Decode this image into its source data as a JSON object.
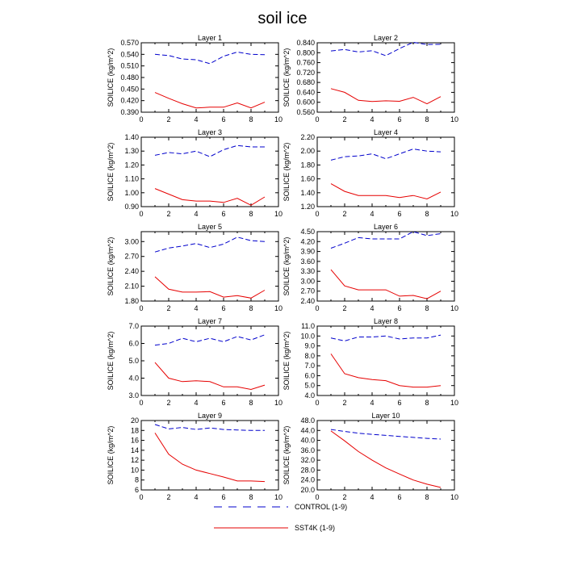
{
  "title": "soil ice",
  "legend": {
    "control_label": "CONTROL (1-9)",
    "sst4k_label": "SST4K (1-9)"
  },
  "colors": {
    "control": "#0000cc",
    "sst4k": "#e60000",
    "axis": "#000000"
  },
  "chart_data": [
    {
      "type": "line",
      "title": "Layer 1",
      "xlabel": "",
      "ylabel": "SOILICE  (kg/m^2)",
      "x": [
        1,
        2,
        3,
        4,
        5,
        6,
        7,
        8,
        9
      ],
      "xlim": [
        0,
        10
      ],
      "xticks": [
        0,
        2,
        4,
        6,
        8,
        10
      ],
      "ylim": [
        0.39,
        0.57
      ],
      "yticks": [
        "0.390",
        "0.420",
        "0.450",
        "0.480",
        "0.510",
        "0.540",
        "0.570"
      ],
      "series": [
        {
          "name": "CONTROL (1-9)",
          "style": "dashed",
          "values": [
            0.54,
            0.537,
            0.528,
            0.526,
            0.516,
            0.535,
            0.546,
            0.54,
            0.539
          ]
        },
        {
          "name": "SST4K (1-9)",
          "style": "solid",
          "values": [
            0.441,
            0.426,
            0.412,
            0.401,
            0.403,
            0.403,
            0.414,
            0.401,
            0.416
          ]
        }
      ]
    },
    {
      "type": "line",
      "title": "Layer 2",
      "xlabel": "",
      "ylabel": "SOILICE  (kg/m^2)",
      "x": [
        1,
        2,
        3,
        4,
        5,
        6,
        7,
        8,
        9
      ],
      "xlim": [
        0,
        10
      ],
      "xticks": [
        0,
        2,
        4,
        6,
        8,
        10
      ],
      "ylim": [
        0.56,
        0.84
      ],
      "yticks": [
        "0.560",
        "0.600",
        "0.640",
        "0.680",
        "0.720",
        "0.760",
        "0.800",
        "0.840"
      ],
      "series": [
        {
          "name": "CONTROL (1-9)",
          "style": "dashed",
          "values": [
            0.807,
            0.813,
            0.803,
            0.808,
            0.788,
            0.817,
            0.842,
            0.833,
            0.834
          ]
        },
        {
          "name": "SST4K (1-9)",
          "style": "solid",
          "values": [
            0.655,
            0.64,
            0.608,
            0.603,
            0.606,
            0.604,
            0.62,
            0.594,
            0.623
          ]
        }
      ]
    },
    {
      "type": "line",
      "title": "Layer 3",
      "xlabel": "",
      "ylabel": "SOILICE  (kg/m^2)",
      "x": [
        1,
        2,
        3,
        4,
        5,
        6,
        7,
        8,
        9
      ],
      "xlim": [
        0,
        10
      ],
      "xticks": [
        0,
        2,
        4,
        6,
        8,
        10
      ],
      "ylim": [
        0.9,
        1.4
      ],
      "yticks": [
        "0.90",
        "1.00",
        "1.10",
        "1.20",
        "1.30",
        "1.40"
      ],
      "series": [
        {
          "name": "CONTROL (1-9)",
          "style": "dashed",
          "values": [
            1.27,
            1.29,
            1.28,
            1.3,
            1.26,
            1.31,
            1.34,
            1.33,
            1.33
          ]
        },
        {
          "name": "SST4K (1-9)",
          "style": "solid",
          "values": [
            1.03,
            0.99,
            0.95,
            0.94,
            0.94,
            0.93,
            0.96,
            0.91,
            0.97
          ]
        }
      ]
    },
    {
      "type": "line",
      "title": "Layer 4",
      "xlabel": "",
      "ylabel": "SOILICE  (kg/m^2)",
      "x": [
        1,
        2,
        3,
        4,
        5,
        6,
        7,
        8,
        9
      ],
      "xlim": [
        0,
        10
      ],
      "xticks": [
        0,
        2,
        4,
        6,
        8,
        10
      ],
      "ylim": [
        1.2,
        2.2
      ],
      "yticks": [
        "1.20",
        "1.40",
        "1.60",
        "1.80",
        "2.00",
        "2.20"
      ],
      "series": [
        {
          "name": "CONTROL (1-9)",
          "style": "dashed",
          "values": [
            1.87,
            1.92,
            1.93,
            1.96,
            1.89,
            1.96,
            2.03,
            2.0,
            1.99
          ]
        },
        {
          "name": "SST4K (1-9)",
          "style": "solid",
          "values": [
            1.53,
            1.42,
            1.36,
            1.36,
            1.36,
            1.33,
            1.36,
            1.31,
            1.41
          ]
        }
      ]
    },
    {
      "type": "line",
      "title": "Layer 5",
      "xlabel": "",
      "ylabel": "SOILICE  (kg/m^2)",
      "x": [
        1,
        2,
        3,
        4,
        5,
        6,
        7,
        8,
        9
      ],
      "xlim": [
        0,
        10
      ],
      "xticks": [
        0,
        2,
        4,
        6,
        8,
        10
      ],
      "ylim": [
        1.8,
        3.2
      ],
      "yticks": [
        "1.80",
        "2.10",
        "2.40",
        "2.70",
        "3.00"
      ],
      "series": [
        {
          "name": "CONTROL (1-9)",
          "style": "dashed",
          "values": [
            2.79,
            2.87,
            2.91,
            2.96,
            2.88,
            2.95,
            3.09,
            3.02,
            3.0
          ]
        },
        {
          "name": "SST4K (1-9)",
          "style": "solid",
          "values": [
            2.29,
            2.04,
            1.98,
            1.98,
            1.99,
            1.88,
            1.91,
            1.86,
            2.02
          ]
        }
      ]
    },
    {
      "type": "line",
      "title": "Layer 6",
      "xlabel": "",
      "ylabel": "SOILICE  (kg/m^2)",
      "x": [
        1,
        2,
        3,
        4,
        5,
        6,
        7,
        8,
        9
      ],
      "xlim": [
        0,
        10
      ],
      "xticks": [
        0,
        2,
        4,
        6,
        8,
        10
      ],
      "ylim": [
        2.4,
        4.5
      ],
      "yticks": [
        "2.40",
        "2.70",
        "3.00",
        "3.30",
        "3.60",
        "3.90",
        "4.20",
        "4.50"
      ],
      "series": [
        {
          "name": "CONTROL (1-9)",
          "style": "dashed",
          "values": [
            4.0,
            4.15,
            4.32,
            4.28,
            4.28,
            4.28,
            4.5,
            4.38,
            4.44
          ]
        },
        {
          "name": "SST4K (1-9)",
          "style": "solid",
          "values": [
            3.35,
            2.86,
            2.74,
            2.74,
            2.74,
            2.55,
            2.57,
            2.47,
            2.7
          ]
        }
      ]
    },
    {
      "type": "line",
      "title": "Layer 7",
      "xlabel": "",
      "ylabel": "SOILICE  (kg/m^2)",
      "x": [
        1,
        2,
        3,
        4,
        5,
        6,
        7,
        8,
        9
      ],
      "xlim": [
        0,
        10
      ],
      "xticks": [
        0,
        2,
        4,
        6,
        8,
        10
      ],
      "ylim": [
        3.0,
        7.0
      ],
      "yticks": [
        "3.0",
        "4.0",
        "5.0",
        "6.0",
        "7.0"
      ],
      "series": [
        {
          "name": "CONTROL (1-9)",
          "style": "dashed",
          "values": [
            5.9,
            6.0,
            6.3,
            6.1,
            6.3,
            6.1,
            6.4,
            6.2,
            6.5
          ]
        },
        {
          "name": "SST4K (1-9)",
          "style": "solid",
          "values": [
            4.9,
            4.0,
            3.8,
            3.85,
            3.8,
            3.5,
            3.5,
            3.35,
            3.6
          ]
        }
      ]
    },
    {
      "type": "line",
      "title": "Layer 8",
      "xlabel": "",
      "ylabel": "SOILICE  (kg/m^2)",
      "x": [
        1,
        2,
        3,
        4,
        5,
        6,
        7,
        8,
        9
      ],
      "xlim": [
        0,
        10
      ],
      "xticks": [
        0,
        2,
        4,
        6,
        8,
        10
      ],
      "ylim": [
        4.0,
        11.0
      ],
      "yticks": [
        "4.0",
        "5.0",
        "6.0",
        "7.0",
        "8.0",
        "9.0",
        "10.0",
        "11.0"
      ],
      "series": [
        {
          "name": "CONTROL (1-9)",
          "style": "dashed",
          "values": [
            9.8,
            9.5,
            9.9,
            9.9,
            10.0,
            9.7,
            9.8,
            9.8,
            10.1
          ]
        },
        {
          "name": "SST4K (1-9)",
          "style": "solid",
          "values": [
            8.2,
            6.2,
            5.8,
            5.6,
            5.5,
            5.0,
            4.85,
            4.85,
            5.0
          ]
        }
      ]
    },
    {
      "type": "line",
      "title": "Layer 9",
      "xlabel": "",
      "ylabel": "SOILICE  (kg/m^2)",
      "x": [
        1,
        2,
        3,
        4,
        5,
        6,
        7,
        8,
        9
      ],
      "xlim": [
        0,
        10
      ],
      "xticks": [
        0,
        2,
        4,
        6,
        8,
        10
      ],
      "ylim": [
        6,
        20
      ],
      "yticks": [
        "6",
        "8",
        "10",
        "12",
        "14",
        "16",
        "18",
        "20"
      ],
      "series": [
        {
          "name": "CONTROL (1-9)",
          "style": "dashed",
          "values": [
            19.2,
            18.3,
            18.6,
            18.2,
            18.5,
            18.2,
            18.1,
            18.0,
            18.0
          ]
        },
        {
          "name": "SST4K (1-9)",
          "style": "solid",
          "values": [
            17.5,
            13.2,
            11.2,
            10.0,
            9.3,
            8.6,
            7.8,
            7.8,
            7.7
          ]
        }
      ]
    },
    {
      "type": "line",
      "title": "Layer 10",
      "xlabel": "",
      "ylabel": "SOILICE  (kg/m^2)",
      "x": [
        1,
        2,
        3,
        4,
        5,
        6,
        7,
        8,
        9
      ],
      "xlim": [
        0,
        10
      ],
      "xticks": [
        0,
        2,
        4,
        6,
        8,
        10
      ],
      "ylim": [
        20,
        48
      ],
      "yticks": [
        "20.0",
        "24.0",
        "28.0",
        "32.0",
        "36.0",
        "40.0",
        "44.0",
        "48.0"
      ],
      "series": [
        {
          "name": "CONTROL (1-9)",
          "style": "dashed",
          "values": [
            44.4,
            43.6,
            42.9,
            42.4,
            42.0,
            41.6,
            41.2,
            40.8,
            40.5
          ]
        },
        {
          "name": "SST4K (1-9)",
          "style": "solid",
          "values": [
            43.8,
            39.8,
            35.5,
            32.0,
            28.9,
            26.4,
            24.0,
            22.3,
            21.0
          ]
        }
      ]
    }
  ]
}
